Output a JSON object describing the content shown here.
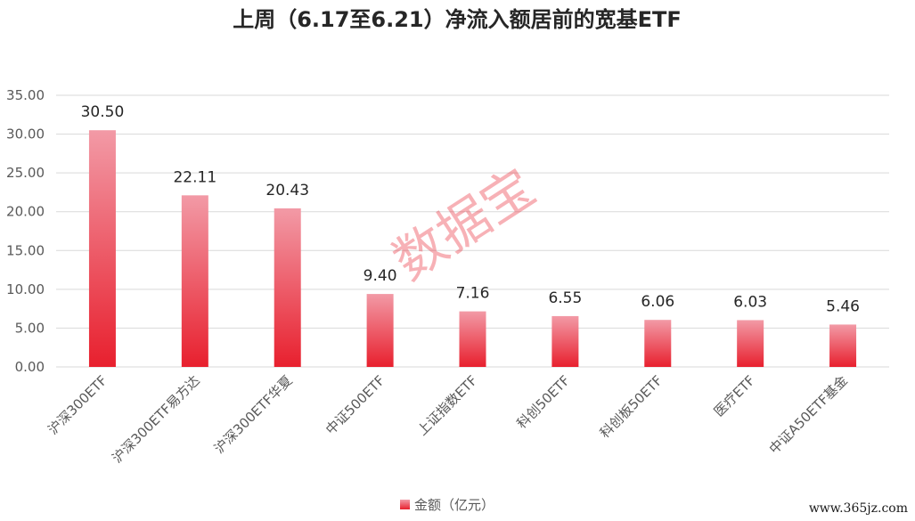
{
  "chart_data": {
    "type": "bar",
    "title": "上周（6.17至6.21）净流入额居前的宽基ETF",
    "categories": [
      "沪深300ETF",
      "沪深300ETF易方达",
      "沪深300ETF华夏",
      "中证500ETF",
      "上证指数ETF",
      "科创50ETF",
      "科创板50ETF",
      "医疗ETF",
      "中证A50ETF基金"
    ],
    "series": [
      {
        "name": "金额（亿元）",
        "values": [
          30.5,
          22.11,
          20.43,
          9.4,
          7.16,
          6.55,
          6.06,
          6.03,
          5.46
        ]
      }
    ],
    "data_labels": [
      "30.50",
      "22.11",
      "20.43",
      "9.40",
      "7.16",
      "6.55",
      "6.06",
      "6.03",
      "5.46"
    ],
    "y_ticks": [
      0,
      5,
      10,
      15,
      20,
      25,
      30,
      35
    ],
    "y_tick_labels": [
      "0.00",
      "5.00",
      "10.00",
      "15.00",
      "20.00",
      "25.00",
      "30.00",
      "35.00"
    ],
    "ylim": [
      0,
      35
    ],
    "xlabel": "",
    "ylabel": "",
    "grid": true,
    "legend_position": "bottom",
    "colors": {
      "bar_top": "#f29aa6",
      "bar_bottom": "#e8202e",
      "grid": "#d9d9d9",
      "axis_text": "#595959"
    }
  },
  "watermark": "数据宝",
  "source_mark": "www.365jz.com"
}
